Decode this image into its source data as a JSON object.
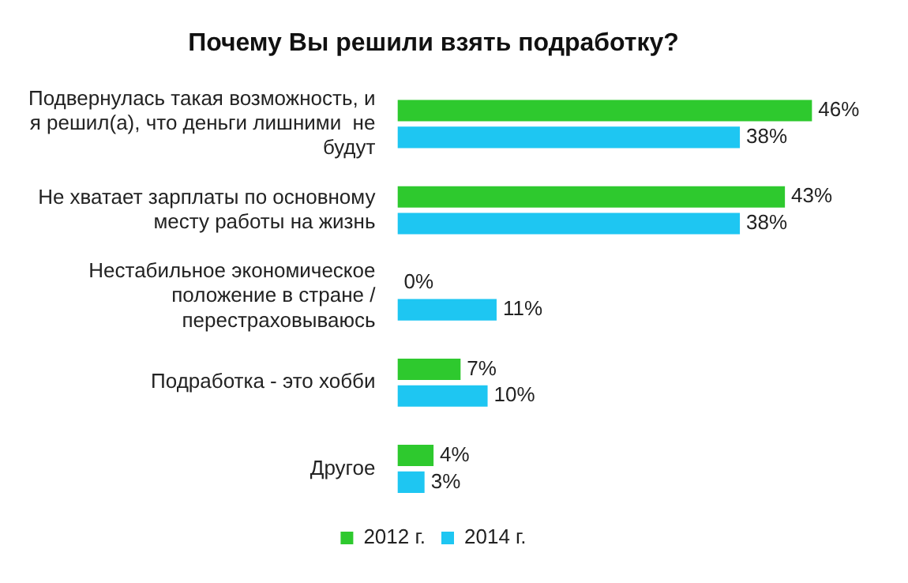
{
  "chart_data": {
    "type": "bar",
    "orientation": "horizontal",
    "title": "Почему Вы решили взять подработку?",
    "categories": [
      "Подвернулась такая возможность, и я решил(а), что деньги лишними  не будут",
      "Не хватает зарплаты по основному месту работы на жизнь",
      "Нестабильное экономическое положение в стране / перестраховываюсь",
      "Подработка - это хобби",
      "Другое"
    ],
    "series": [
      {
        "name": "2012 г.",
        "color": "#2ec92e",
        "values": [
          46,
          43,
          0,
          7,
          4
        ],
        "value_labels": [
          "46%",
          "43%",
          "0%",
          "7%",
          "4%"
        ]
      },
      {
        "name": "2014 г.",
        "color": "#1ec6f2",
        "values": [
          38,
          38,
          11,
          10,
          3
        ],
        "value_labels": [
          "38%",
          "38%",
          "11%",
          "10%",
          "3%"
        ]
      }
    ],
    "legend": "bottom",
    "grid": false,
    "tick_labels": "y"
  }
}
